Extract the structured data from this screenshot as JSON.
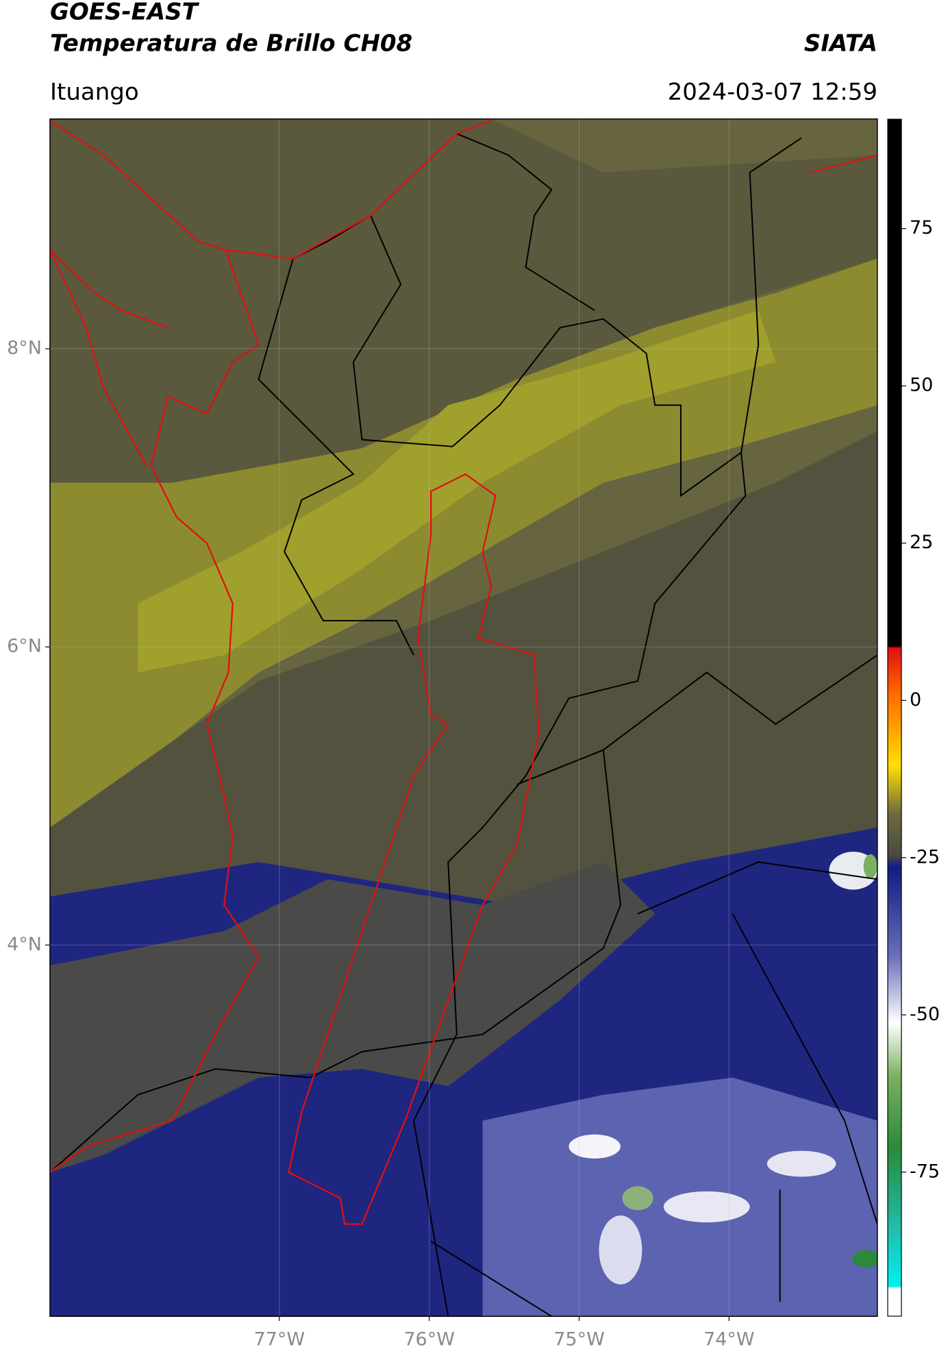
{
  "header": {
    "title": "GOES-EAST",
    "subtitle": "Temperatura de Brillo CH08",
    "source": "SIATA",
    "location": "Ituango",
    "datetime": "2024-03-07 12:59"
  },
  "map": {
    "xlim": [
      -78.53,
      -73.01
    ],
    "ylim": [
      1.51,
      9.54
    ],
    "xticks": [
      {
        "value": -77,
        "label": "77°W"
      },
      {
        "value": -76,
        "label": "76°W"
      },
      {
        "value": -75,
        "label": "75°W"
      },
      {
        "value": -74,
        "label": "74°W"
      }
    ],
    "yticks": [
      {
        "value": 8,
        "label": "8°N"
      },
      {
        "value": 6,
        "label": "6°N"
      },
      {
        "value": 4,
        "label": "4°N"
      }
    ],
    "grid": true
  },
  "colorbar": {
    "lim": [
      -97.9,
      92.4
    ],
    "ticks": [
      75,
      50,
      25,
      0,
      -25,
      -50,
      -75
    ]
  }
}
